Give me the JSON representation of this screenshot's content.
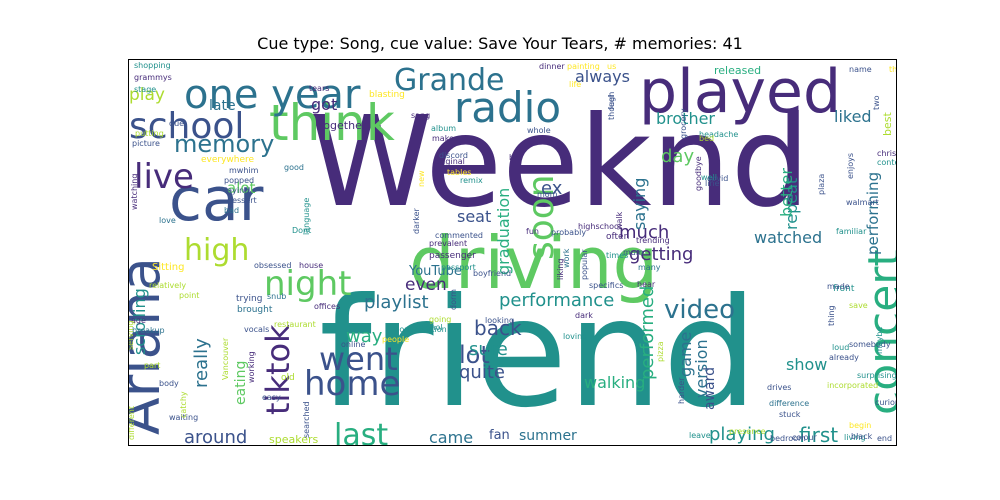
{
  "title": "Cue type: Song, cue value: Save Your Tears, # memories: 41",
  "colors": {
    "dark_purple": "#472c7a",
    "indigo": "#3b528b",
    "blue": "#2c728e",
    "teal": "#21918c",
    "green": "#28ae80",
    "light_green": "#5ec962",
    "lime": "#addc30",
    "yellow": "#fde725"
  },
  "words": [
    {
      "text": "Weeknd",
      "size": 9,
      "color": "dark_purple"
    },
    {
      "text": "friend",
      "size": 9,
      "color": "teal"
    },
    {
      "text": "driving",
      "size": 7,
      "color": "light_green"
    },
    {
      "text": "played",
      "size": 6,
      "color": "dark_purple"
    },
    {
      "text": "think",
      "size": 6,
      "color": "light_green"
    },
    {
      "text": "Ariana",
      "size": 6,
      "color": "indigo"
    },
    {
      "text": "car",
      "size": 6,
      "color": "indigo"
    },
    {
      "text": "radio",
      "size": 5,
      "color": "blue"
    },
    {
      "text": "concert",
      "size": 5,
      "color": "green"
    },
    {
      "text": "one year",
      "size": 5,
      "color": "blue"
    },
    {
      "text": "Grande",
      "size": 4,
      "color": "blue"
    },
    {
      "text": "school",
      "size": 4,
      "color": "indigo"
    },
    {
      "text": "live",
      "size": 4,
      "color": "dark_purple"
    },
    {
      "text": "memory",
      "size": 4,
      "color": "blue"
    },
    {
      "text": "high",
      "size": 4,
      "color": "lime"
    },
    {
      "text": "night",
      "size": 4,
      "color": "light_green"
    },
    {
      "text": "went",
      "size": 4,
      "color": "indigo"
    },
    {
      "text": "home",
      "size": 4,
      "color": "indigo"
    },
    {
      "text": "tiktok",
      "size": 4,
      "color": "dark_purple"
    },
    {
      "text": "last",
      "size": 4,
      "color": "green"
    },
    {
      "text": "video",
      "size": 4,
      "color": "blue"
    },
    {
      "text": "soon",
      "size": 4,
      "color": "light_green"
    },
    {
      "text": "graduation",
      "size": 3,
      "color": "green"
    },
    {
      "text": "performance",
      "size": 3,
      "color": "teal"
    },
    {
      "text": "getting",
      "size": 3,
      "color": "dark_purple"
    },
    {
      "text": "repeat",
      "size": 3,
      "color": "teal"
    },
    {
      "text": "performed",
      "size": 3,
      "color": "green"
    },
    {
      "text": "scrolling",
      "size": 3,
      "color": "teal"
    },
    {
      "text": "really",
      "size": 3,
      "color": "blue"
    },
    {
      "text": "back",
      "size": 3,
      "color": "indigo"
    },
    {
      "text": "much",
      "size": 3,
      "color": "dark_purple"
    },
    {
      "text": "even",
      "size": 3,
      "color": "dark_purple"
    },
    {
      "text": "playlist",
      "size": 3,
      "color": "blue"
    },
    {
      "text": "lot",
      "size": 3,
      "color": "indigo"
    },
    {
      "text": "way",
      "size": 3,
      "color": "green"
    },
    {
      "text": "quite",
      "size": 3,
      "color": "indigo"
    },
    {
      "text": "sure",
      "size": 3,
      "color": "teal"
    },
    {
      "text": "version",
      "size": 3,
      "color": "blue"
    },
    {
      "text": "game",
      "size": 3,
      "color": "blue"
    },
    {
      "text": "show",
      "size": 3,
      "color": "teal"
    },
    {
      "text": "first",
      "size": 3,
      "color": "teal"
    },
    {
      "text": "around",
      "size": 3,
      "color": "indigo"
    },
    {
      "text": "came",
      "size": 3,
      "color": "blue"
    },
    {
      "text": "summer",
      "size": 2,
      "color": "blue"
    },
    {
      "text": "playing",
      "size": 3,
      "color": "teal"
    },
    {
      "text": "walking",
      "size": 3,
      "color": "green"
    },
    {
      "text": "award",
      "size": 2,
      "color": "indigo"
    },
    {
      "text": "eating",
      "size": 2,
      "color": "light_green"
    },
    {
      "text": "fan",
      "size": 2,
      "color": "indigo"
    },
    {
      "text": "watched",
      "size": 2,
      "color": "blue"
    },
    {
      "text": "performing",
      "size": 2,
      "color": "blue"
    },
    {
      "text": "better",
      "size": 2,
      "color": "green"
    },
    {
      "text": "saying",
      "size": 2,
      "color": "blue"
    },
    {
      "text": "day",
      "size": 2,
      "color": "light_green"
    },
    {
      "text": "ex",
      "size": 2,
      "color": "indigo"
    },
    {
      "text": "seat",
      "size": 2,
      "color": "indigo"
    },
    {
      "text": "brother",
      "size": 2,
      "color": "teal"
    },
    {
      "text": "liked",
      "size": 2,
      "color": "blue"
    },
    {
      "text": "always",
      "size": 2,
      "color": "indigo"
    },
    {
      "text": "got",
      "size": 2,
      "color": "dark_purple"
    },
    {
      "text": "late",
      "size": 2,
      "color": "blue"
    },
    {
      "text": "play",
      "size": 2,
      "color": "lime"
    },
    {
      "text": "alot",
      "size": 2,
      "color": "light_green"
    },
    {
      "text": "YouTube",
      "size": 1,
      "color": "blue"
    },
    {
      "text": "speakers",
      "size": 1,
      "color": "lime"
    },
    {
      "text": "released",
      "size": 1,
      "color": "green"
    },
    {
      "text": "best",
      "size": 1,
      "color": "lime"
    },
    {
      "text": "front",
      "size": 1,
      "color": "teal"
    },
    {
      "text": "together",
      "size": 1,
      "color": "dark_purple"
    },
    {
      "text": "blasting",
      "size": 1,
      "color": "yellow"
    },
    {
      "text": "shopping",
      "size": 1,
      "color": "teal"
    },
    {
      "text": "grammys",
      "size": 1,
      "color": "dark_purple"
    },
    {
      "text": "stage",
      "size": 1,
      "color": "teal"
    },
    {
      "text": "due",
      "size": 1,
      "color": "indigo"
    },
    {
      "text": "putting",
      "size": 1,
      "color": "lime"
    },
    {
      "text": "picture",
      "size": 1,
      "color": "indigo"
    },
    {
      "text": "mwhim",
      "size": 1,
      "color": "indigo"
    },
    {
      "text": "good",
      "size": 1,
      "color": "blue"
    },
    {
      "text": "everywhere",
      "size": 1,
      "color": "yellow"
    },
    {
      "text": "popped",
      "size": 1,
      "color": "indigo"
    },
    {
      "text": "laying",
      "size": 1,
      "color": "indigo"
    },
    {
      "text": "dessert",
      "size": 1,
      "color": "indigo"
    },
    {
      "text": "watching",
      "size": 1,
      "color": "dark_purple"
    },
    {
      "text": "love",
      "size": 1,
      "color": "blue"
    },
    {
      "text": "bad",
      "size": 1,
      "color": "blue"
    },
    {
      "text": "Dont",
      "size": 1,
      "color": "teal"
    },
    {
      "text": "language",
      "size": 1,
      "color": "teal"
    },
    {
      "text": "house",
      "size": 1,
      "color": "dark_purple"
    },
    {
      "text": "obsessed",
      "size": 1,
      "color": "indigo"
    },
    {
      "text": "Sitting",
      "size": 1,
      "color": "yellow"
    },
    {
      "text": "relatively",
      "size": 1,
      "color": "lime"
    },
    {
      "text": "point",
      "size": 1,
      "color": "lime"
    },
    {
      "text": "trying",
      "size": 1,
      "color": "indigo"
    },
    {
      "text": "brought",
      "size": 1,
      "color": "blue"
    },
    {
      "text": "snub",
      "size": 1,
      "color": "blue"
    },
    {
      "text": "offices",
      "size": 1,
      "color": "dark_purple"
    },
    {
      "text": "vocals",
      "size": 1,
      "color": "indigo"
    },
    {
      "text": "restaurant",
      "size": 1,
      "color": "lime"
    },
    {
      "text": "breakup",
      "size": 1,
      "color": "blue"
    },
    {
      "text": "age",
      "size": 1,
      "color": "dark_purple"
    },
    {
      "text": "serving",
      "size": 1,
      "color": "lime"
    },
    {
      "text": "part",
      "size": 1,
      "color": "lime"
    },
    {
      "text": "body",
      "size": 1,
      "color": "indigo"
    },
    {
      "text": "waiting",
      "size": 1,
      "color": "indigo"
    },
    {
      "text": "catchy",
      "size": 1,
      "color": "lime"
    },
    {
      "text": "easy",
      "size": 1,
      "color": "indigo"
    },
    {
      "text": "old",
      "size": 1,
      "color": "lime"
    },
    {
      "text": "working",
      "size": 1,
      "color": "dark_purple"
    },
    {
      "text": "Vancouver",
      "size": 1,
      "color": "lime"
    },
    {
      "text": "different",
      "size": 1,
      "color": "lime"
    },
    {
      "text": "searched",
      "size": 1,
      "color": "indigo"
    },
    {
      "text": "online",
      "size": 1,
      "color": "indigo"
    },
    {
      "text": "people",
      "size": 1,
      "color": "yellow"
    },
    {
      "text": "conversation",
      "size": 1,
      "color": "teal"
    },
    {
      "text": "alcohol",
      "size": 1,
      "color": "teal"
    },
    {
      "text": "going",
      "size": 1,
      "color": "lime"
    },
    {
      "text": "looking",
      "size": 1,
      "color": "indigo"
    },
    {
      "text": "dorm",
      "size": 1,
      "color": "indigo"
    },
    {
      "text": "boyfriend",
      "size": 1,
      "color": "indigo"
    },
    {
      "text": "passport",
      "size": 1,
      "color": "teal"
    },
    {
      "text": "passenger",
      "size": 1,
      "color": "dark_purple"
    },
    {
      "text": "prevalent",
      "size": 1,
      "color": "dark_purple"
    },
    {
      "text": "commented",
      "size": 1,
      "color": "indigo"
    },
    {
      "text": "darker",
      "size": 1,
      "color": "indigo"
    },
    {
      "text": "new",
      "size": 1,
      "color": "yellow"
    },
    {
      "text": "tables",
      "size": 1,
      "color": "yellow"
    },
    {
      "text": "remix",
      "size": 1,
      "color": "teal"
    },
    {
      "text": "original",
      "size": 1,
      "color": "dark_purple"
    },
    {
      "text": "discord",
      "size": 1,
      "color": "indigo"
    },
    {
      "text": "makes",
      "size": 1,
      "color": "dark_purple"
    },
    {
      "text": "album",
      "size": 1,
      "color": "teal"
    },
    {
      "text": "sang",
      "size": 1,
      "color": "dark_purple"
    },
    {
      "text": "tears",
      "size": 1,
      "color": "dark_purple"
    },
    {
      "text": "dinner",
      "size": 1,
      "color": "dark_purple"
    },
    {
      "text": "painting",
      "size": 1,
      "color": "yellow"
    },
    {
      "text": "life",
      "size": 1,
      "color": "yellow"
    },
    {
      "text": "us",
      "size": 1,
      "color": "yellow"
    },
    {
      "text": "feel",
      "size": 1,
      "color": "indigo"
    },
    {
      "text": "though",
      "size": 1,
      "color": "indigo"
    },
    {
      "text": "whole",
      "size": 1,
      "color": "indigo"
    },
    {
      "text": "bit",
      "size": 1,
      "color": "dark_purple"
    },
    {
      "text": "mom",
      "size": 1,
      "color": "indigo"
    },
    {
      "text": "fun",
      "size": 1,
      "color": "dark_purple"
    },
    {
      "text": "probably",
      "size": 1,
      "color": "indigo"
    },
    {
      "text": "often",
      "size": 1,
      "color": "dark_purple"
    },
    {
      "text": "walk",
      "size": 1,
      "color": "dark_purple"
    },
    {
      "text": "highschool",
      "size": 1,
      "color": "dark_purple"
    },
    {
      "text": "trending",
      "size": 1,
      "color": "dark_purple"
    },
    {
      "text": "times",
      "size": 1,
      "color": "teal"
    },
    {
      "text": "mum",
      "size": 1,
      "color": "indigo"
    },
    {
      "text": "work",
      "size": 1,
      "color": "blue"
    },
    {
      "text": "many",
      "size": 1,
      "color": "blue"
    },
    {
      "text": "specifics",
      "size": 1,
      "color": "indigo"
    },
    {
      "text": "hear",
      "size": 1,
      "color": "dark_purple"
    },
    {
      "text": "dark",
      "size": 1,
      "color": "dark_purple"
    },
    {
      "text": "liking",
      "size": 1,
      "color": "dark_purple"
    },
    {
      "text": "popular",
      "size": 1,
      "color": "indigo"
    },
    {
      "text": "grocery",
      "size": 1,
      "color": "indigo"
    },
    {
      "text": "headache",
      "size": 1,
      "color": "teal"
    },
    {
      "text": "bed",
      "size": 1,
      "color": "lime"
    },
    {
      "text": "well",
      "size": 1,
      "color": "teal"
    },
    {
      "text": "goodbye",
      "size": 1,
      "color": "dark_purple"
    },
    {
      "text": "covid",
      "size": 1,
      "color": "indigo"
    },
    {
      "text": "line",
      "size": 1,
      "color": "indigo"
    },
    {
      "text": "name",
      "size": 1,
      "color": "indigo"
    },
    {
      "text": "thought",
      "size": 1,
      "color": "yellow"
    },
    {
      "text": "two",
      "size": 1,
      "color": "indigo"
    },
    {
      "text": "christmas",
      "size": 1,
      "color": "dark_purple"
    },
    {
      "text": "content",
      "size": 1,
      "color": "teal"
    },
    {
      "text": "plaza",
      "size": 1,
      "color": "indigo"
    },
    {
      "text": "familiar",
      "size": 1,
      "color": "teal"
    },
    {
      "text": "walmart",
      "size": 1,
      "color": "indigo"
    },
    {
      "text": "enjoys",
      "size": 1,
      "color": "indigo"
    },
    {
      "text": "made",
      "size": 1,
      "color": "indigo"
    },
    {
      "text": "thing",
      "size": 1,
      "color": "indigo"
    },
    {
      "text": "save",
      "size": 1,
      "color": "lime"
    },
    {
      "text": "somebody",
      "size": 1,
      "color": "indigo"
    },
    {
      "text": "loud",
      "size": 1,
      "color": "teal"
    },
    {
      "text": "already",
      "size": 1,
      "color": "indigo"
    },
    {
      "text": "surprising",
      "size": 1,
      "color": "teal"
    },
    {
      "text": "incorporated",
      "size": 1,
      "color": "lime"
    },
    {
      "text": "drives",
      "size": 1,
      "color": "indigo"
    },
    {
      "text": "stuck",
      "size": 1,
      "color": "indigo"
    },
    {
      "text": "end",
      "size": 1,
      "color": "indigo"
    },
    {
      "text": "living",
      "size": 1,
      "color": "teal"
    },
    {
      "text": "begin",
      "size": 1,
      "color": "yellow"
    },
    {
      "text": "maybe",
      "size": 1,
      "color": "teal"
    },
    {
      "text": "curious",
      "size": 1,
      "color": "indigo"
    },
    {
      "text": "black",
      "size": 1,
      "color": "indigo"
    },
    {
      "text": "difference",
      "size": 1,
      "color": "blue"
    },
    {
      "text": "colour",
      "size": 1,
      "color": "indigo"
    },
    {
      "text": "bedroom",
      "size": 1,
      "color": "indigo"
    },
    {
      "text": "presence",
      "size": 1,
      "color": "lime"
    },
    {
      "text": "leave",
      "size": 1,
      "color": "teal"
    },
    {
      "text": "harder",
      "size": 1,
      "color": "indigo"
    },
    {
      "text": "pizza",
      "size": 1,
      "color": "lime"
    },
    {
      "text": "loving",
      "size": 1,
      "color": "teal"
    }
  ]
}
